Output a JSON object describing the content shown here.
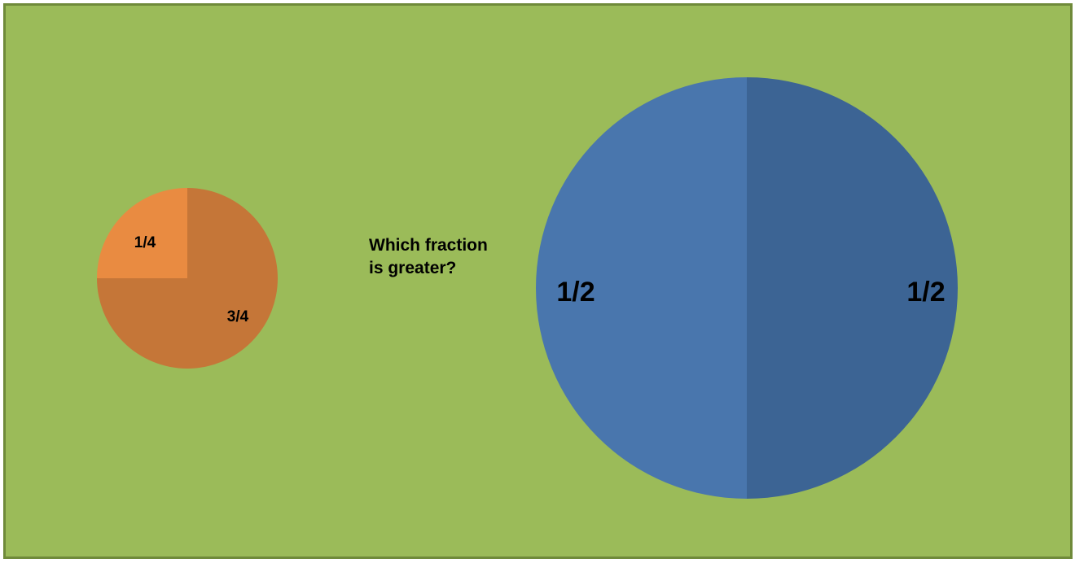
{
  "question": {
    "line1": "Which fraction",
    "line2": "is greater?"
  },
  "chart_data": [
    {
      "type": "pie",
      "title": "",
      "slices": [
        {
          "label": "1/4",
          "value": 0.25,
          "color": "#e98b41"
        },
        {
          "label": "3/4",
          "value": 0.75,
          "color": "#c57638"
        }
      ]
    },
    {
      "type": "pie",
      "title": "",
      "slices": [
        {
          "label": "1/2",
          "value": 0.5,
          "color": "#3c6494"
        },
        {
          "label": "1/2",
          "value": 0.5,
          "color": "#4976ad"
        }
      ]
    }
  ],
  "colors": {
    "background": "#9bbb59",
    "border": "#6f8a3a"
  }
}
